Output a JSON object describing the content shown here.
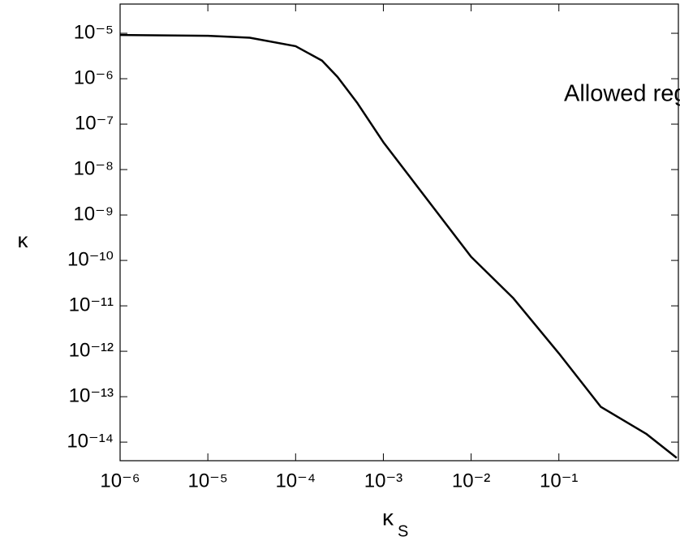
{
  "chart_data": {
    "type": "line",
    "xscale": "log",
    "yscale": "log",
    "xlabel": "κ",
    "xlabel_sub": "S",
    "ylabel": "κ",
    "annotation": "Allowed region",
    "xlim": [
      1e-06,
      2.3
    ],
    "ylim": [
      3.9e-15,
      4.4e-05
    ],
    "xticks": [
      {
        "value": 1e-06,
        "label": "10⁻⁶"
      },
      {
        "value": 1e-05,
        "label": "10⁻⁵"
      },
      {
        "value": 0.0001,
        "label": "10⁻⁴"
      },
      {
        "value": 0.001,
        "label": "10⁻³"
      },
      {
        "value": 0.01,
        "label": "10⁻²"
      },
      {
        "value": 0.1,
        "label": "10⁻¹"
      }
    ],
    "yticks": [
      {
        "value": 1e-05,
        "label": "10⁻⁵"
      },
      {
        "value": 1e-06,
        "label": "10⁻⁶"
      },
      {
        "value": 1e-07,
        "label": "10⁻⁷"
      },
      {
        "value": 1e-08,
        "label": "10⁻⁸"
      },
      {
        "value": 1e-09,
        "label": "10⁻⁹"
      },
      {
        "value": 1e-10,
        "label": "10⁻¹⁰"
      },
      {
        "value": 1e-11,
        "label": "10⁻¹¹"
      },
      {
        "value": 1e-12,
        "label": "10⁻¹²"
      },
      {
        "value": 1e-13,
        "label": "10⁻¹³"
      },
      {
        "value": 1e-14,
        "label": "10⁻¹⁴"
      }
    ],
    "series": [
      {
        "color": "#000000",
        "x": [
          1e-06,
          1e-05,
          3e-05,
          0.0001,
          0.0002,
          0.0003,
          0.0005,
          0.001,
          0.01,
          0.03,
          0.1,
          0.3,
          1,
          2.2
        ],
        "values": [
          9.2e-06,
          8.8e-06,
          8e-06,
          5.2e-06,
          2.5e-06,
          1.1e-06,
          3e-07,
          4e-08,
          1.2e-10,
          1.5e-11,
          9e-13,
          6e-14,
          1.5e-14,
          4.5e-15
        ]
      }
    ]
  }
}
